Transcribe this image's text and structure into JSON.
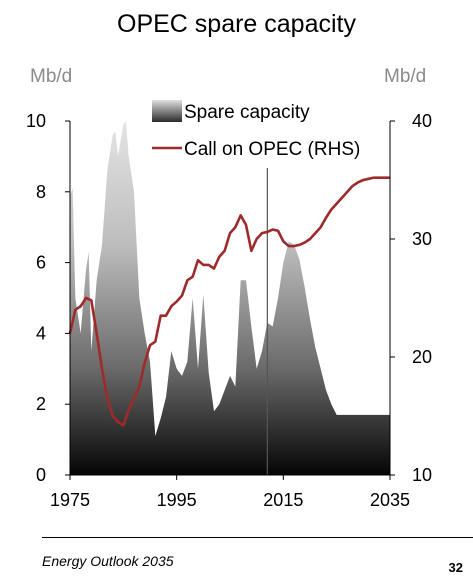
{
  "page": {
    "footer": "Energy Outlook 2035",
    "page_number": "32"
  },
  "chart_data": {
    "type": "area",
    "title": "OPEC spare capacity",
    "ylabel": "Mb/d",
    "y2label": "Mb/d",
    "ylim": [
      0,
      10
    ],
    "y2lim": [
      10,
      40
    ],
    "xlim": [
      1975,
      2035
    ],
    "xticks": [
      "1975",
      "1995",
      "2015",
      "2035"
    ],
    "yticks": [
      "0",
      "2",
      "4",
      "6",
      "8",
      "10"
    ],
    "y2ticks": [
      "10",
      "20",
      "30",
      "40"
    ],
    "projection_start": 2012,
    "legend": {
      "placement": "top-right"
    },
    "series": [
      {
        "name": "Spare capacity",
        "axis": "left",
        "style": "area",
        "x": [
          1975,
          1975.5,
          1976,
          1977,
          1978,
          1978.5,
          1979,
          1980,
          1981,
          1982,
          1983,
          1983.5,
          1984,
          1985,
          1985.5,
          1986,
          1987,
          1988,
          1989,
          1990,
          1991,
          1992,
          1993,
          1994,
          1995,
          1996,
          1997,
          1998,
          1999,
          2000,
          2001,
          2002,
          2003,
          2004,
          2005,
          2006,
          2007,
          2008,
          2009,
          2010,
          2011,
          2012,
          2013,
          2014,
          2015,
          2016,
          2017,
          2018,
          2019,
          2020,
          2021,
          2022,
          2023,
          2024,
          2025,
          2026,
          2027,
          2028,
          2029,
          2030,
          2031,
          2032,
          2033,
          2034,
          2035
        ],
        "values": [
          7.9,
          8.1,
          5.0,
          4.0,
          5.8,
          6.3,
          3.5,
          5.5,
          6.5,
          8.6,
          9.6,
          9.7,
          9.0,
          9.9,
          10.0,
          9.0,
          8.0,
          5.0,
          4.0,
          3.2,
          1.1,
          1.6,
          2.2,
          3.5,
          3.0,
          2.8,
          3.2,
          5.0,
          3.0,
          5.1,
          2.9,
          1.8,
          2.0,
          2.4,
          2.8,
          2.5,
          5.5,
          5.5,
          4.2,
          3.0,
          3.5,
          4.3,
          4.2,
          5.0,
          6.0,
          6.6,
          6.5,
          6.1,
          5.3,
          4.4,
          3.6,
          3.0,
          2.4,
          2.0,
          1.7,
          1.7,
          1.7,
          1.7,
          1.7,
          1.7,
          1.7,
          1.7,
          1.7,
          1.7,
          1.7
        ]
      },
      {
        "name": "Call on OPEC (RHS)",
        "axis": "right",
        "style": "line",
        "color": "#9e2a2b",
        "x": [
          1975,
          1976,
          1977,
          1978,
          1979,
          1980,
          1981,
          1982,
          1983,
          1984,
          1985,
          1986,
          1987,
          1988,
          1989,
          1990,
          1991,
          1992,
          1993,
          1994,
          1995,
          1996,
          1997,
          1998,
          1999,
          2000,
          2001,
          2002,
          2003,
          2004,
          2005,
          2006,
          2007,
          2008,
          2009,
          2010,
          2011,
          2012,
          2013,
          2014,
          2015,
          2016,
          2017,
          2018,
          2019,
          2020,
          2021,
          2022,
          2023,
          2024,
          2025,
          2026,
          2027,
          2028,
          2029,
          2030,
          2031,
          2032,
          2033,
          2034,
          2035
        ],
        "values": [
          22.0,
          24.0,
          24.3,
          25.0,
          24.8,
          22.0,
          19.0,
          16.5,
          15.0,
          14.5,
          14.2,
          15.5,
          16.5,
          17.5,
          19.5,
          21.0,
          21.3,
          23.5,
          23.5,
          24.3,
          24.7,
          25.2,
          26.5,
          26.8,
          28.2,
          27.8,
          27.8,
          27.5,
          28.5,
          29.0,
          30.5,
          31.0,
          32.0,
          31.2,
          29.0,
          30.0,
          30.5,
          30.6,
          30.8,
          30.7,
          29.8,
          29.4,
          29.4,
          29.5,
          29.7,
          30.0,
          30.5,
          31.0,
          31.8,
          32.5,
          33.0,
          33.5,
          34.0,
          34.5,
          34.8,
          35.0,
          35.1,
          35.2,
          35.2,
          35.2,
          35.2
        ]
      }
    ]
  }
}
